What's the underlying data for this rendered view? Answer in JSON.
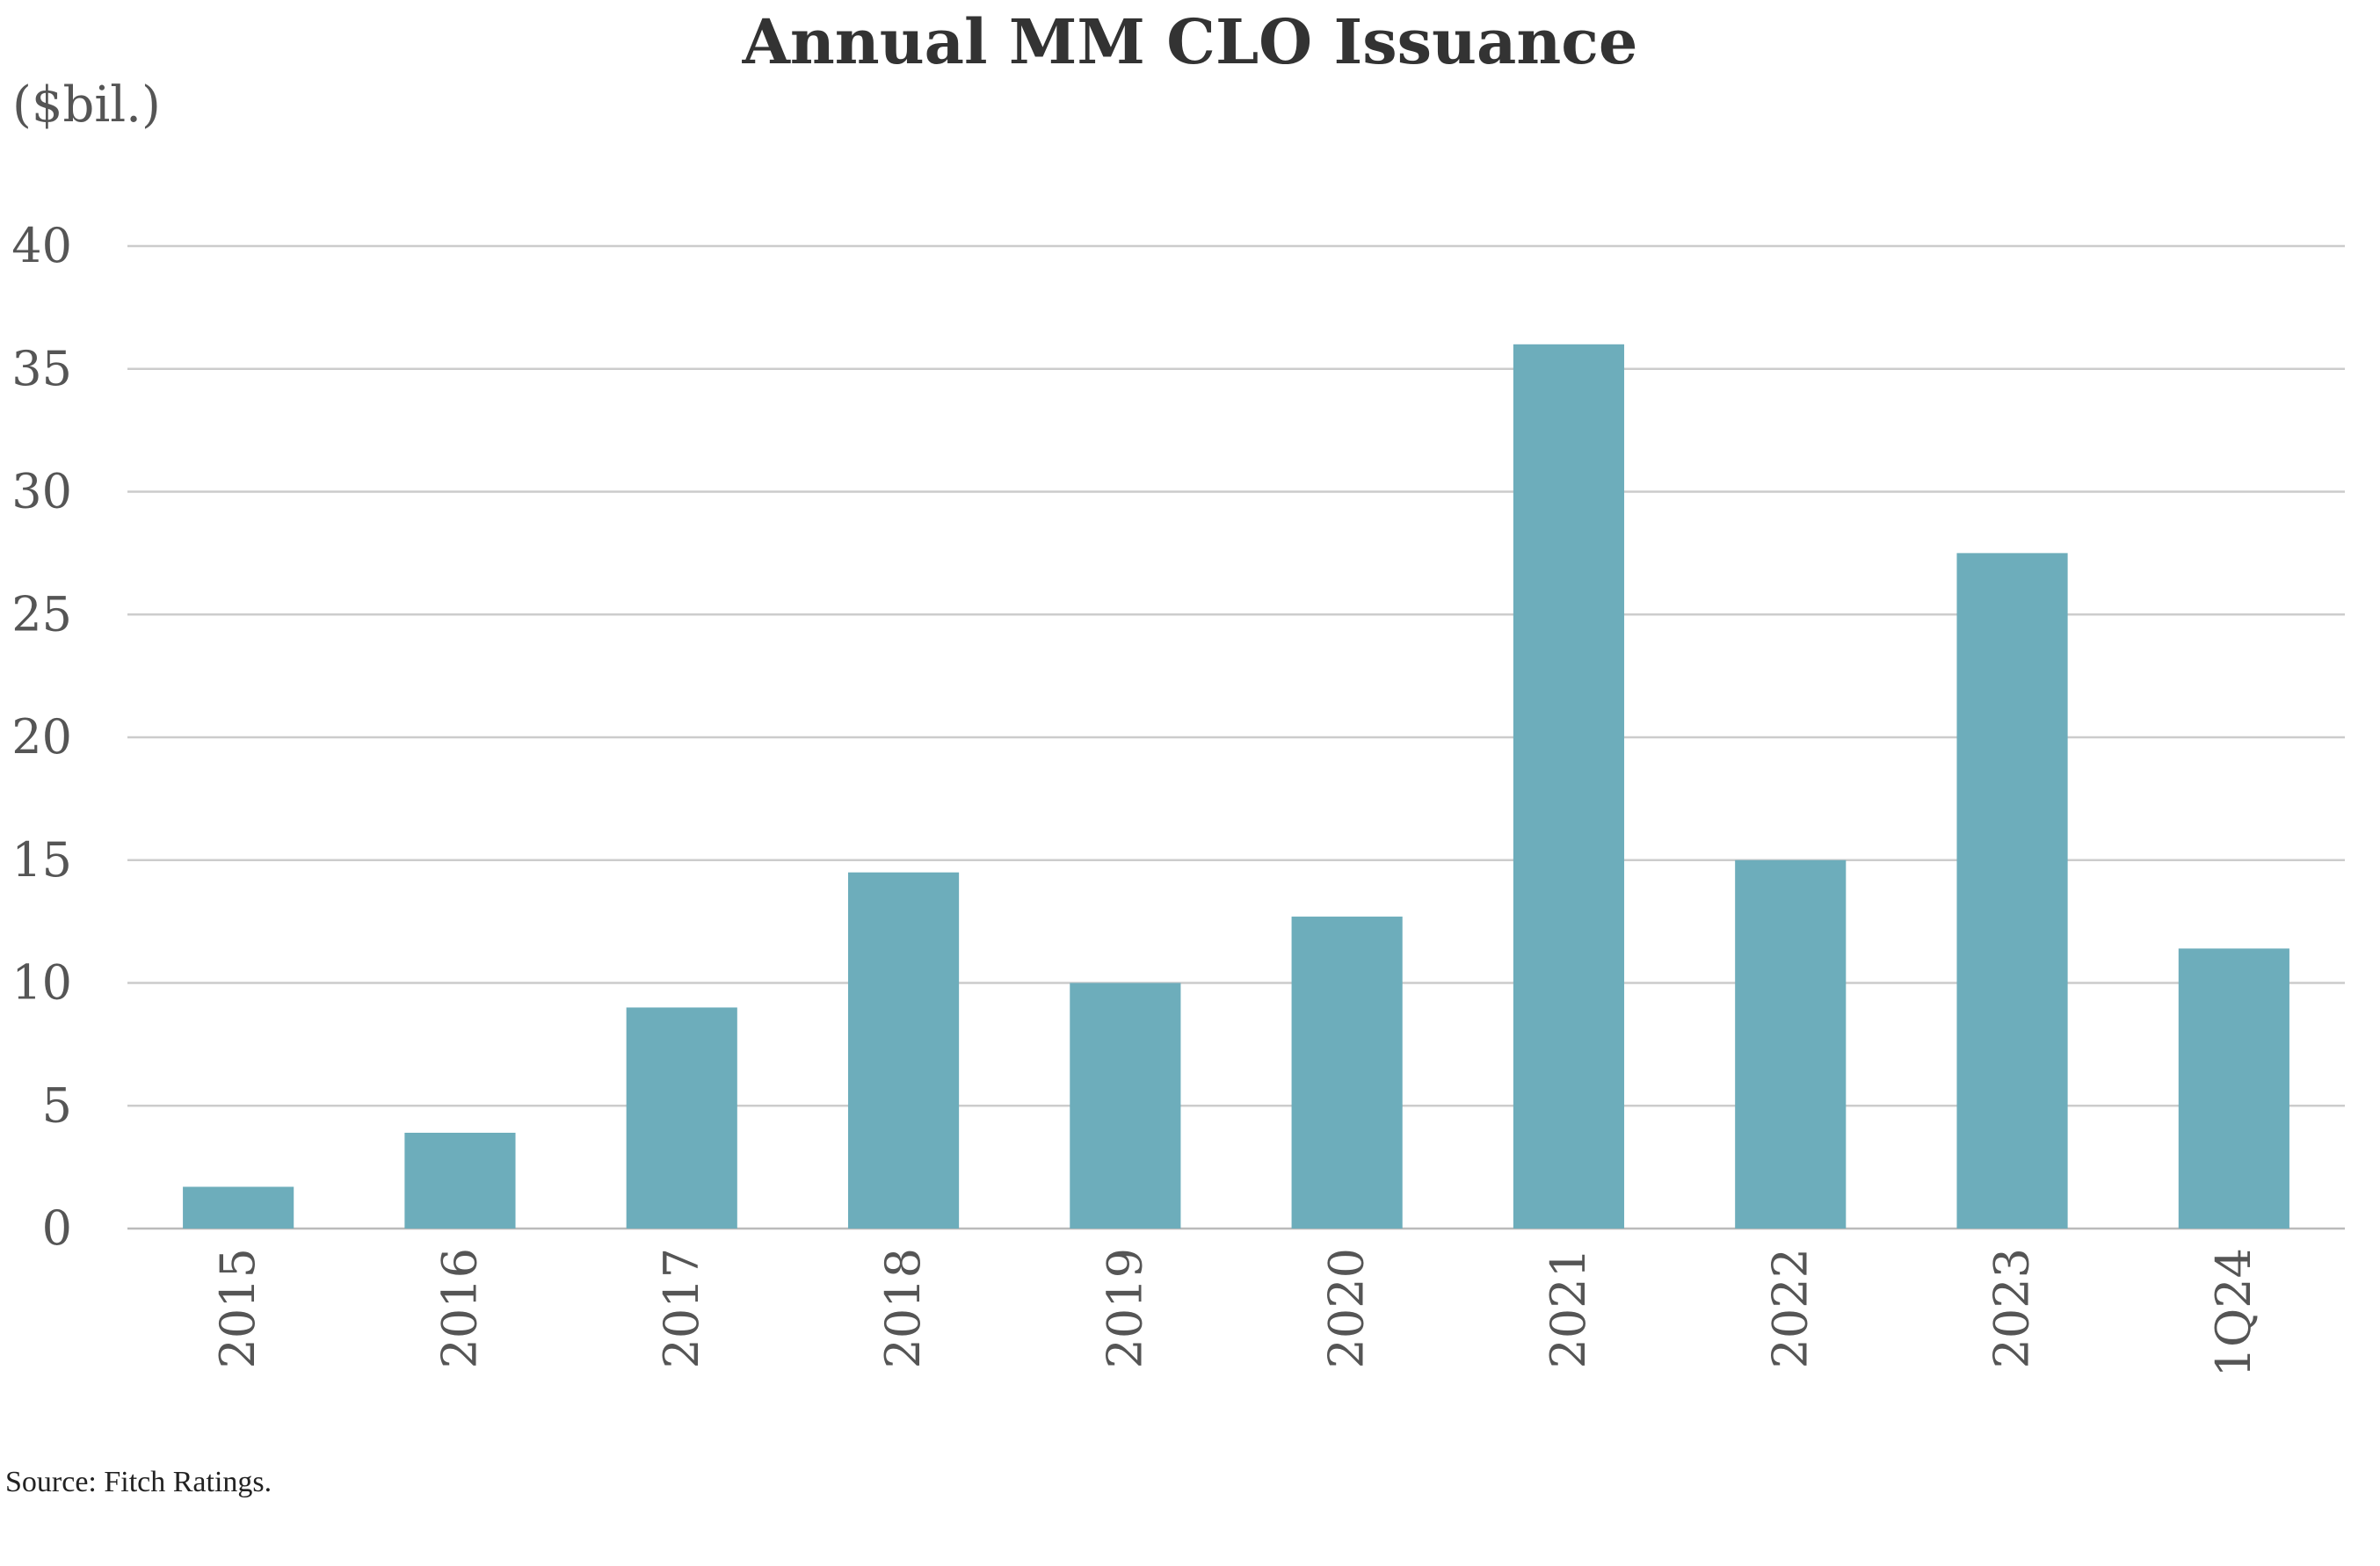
{
  "chart_data": {
    "type": "bar",
    "title": "Annual MM CLO Issuance",
    "ylabel": "($bil.)",
    "xlabel": "",
    "categories": [
      "2015",
      "2016",
      "2017",
      "2018",
      "2019",
      "2020",
      "2021",
      "2022",
      "2023",
      "1Q24"
    ],
    "values": [
      1.7,
      3.9,
      9.0,
      14.5,
      10.0,
      12.7,
      36.0,
      15.0,
      27.5,
      11.4
    ],
    "ylim": [
      0,
      40
    ],
    "yticks": [
      0,
      5,
      10,
      15,
      20,
      25,
      30,
      35,
      40
    ],
    "ytick_labels": [
      "0",
      "5",
      "10",
      "15",
      "20",
      "25",
      "30",
      "35",
      "40"
    ],
    "grid": true,
    "legend": "none",
    "bar_color": "#6DADBB",
    "source": "Source: Fitch Ratings."
  }
}
